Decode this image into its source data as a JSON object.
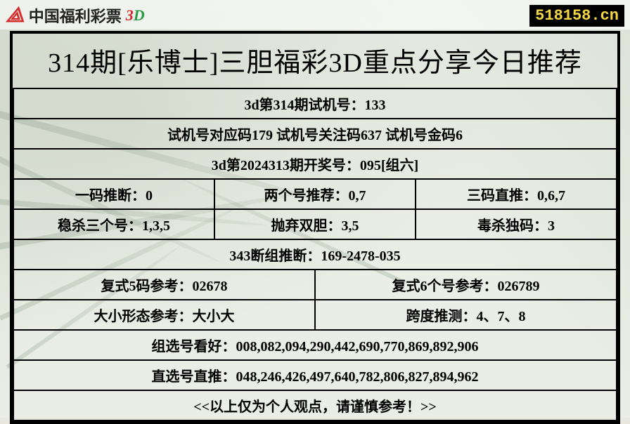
{
  "header": {
    "logo_text": "中国福利彩票",
    "logo_3d": "3D",
    "watermark": "518158.cn"
  },
  "title": "314期[乐博士]三胆福彩3D重点分享今日推荐",
  "rows": {
    "r1": "3d第314期试机号：133",
    "r2": "试机号对应码179 试机号关注码637 试机号金码6",
    "r3": "3d第2024313期开奖号：095[组六]",
    "r4c1": "一码推断：0",
    "r4c2": "两个号推荐：0,7",
    "r4c3": "三码直推：0,6,7",
    "r5c1": "稳杀三个号：1,3,5",
    "r5c2": "抛弃双胆：3,5",
    "r5c3": "毒杀独码：3",
    "r6": "343断组推断：169-2478-035",
    "r7c1": "复式5码参考：02678",
    "r7c2": "复式6个号参考：026789",
    "r8c1": "大小形态参考：大小大",
    "r8c2": "跨度推测：4、7、8",
    "r9": "组选号看好：008,082,094,290,442,690,770,869,892,906",
    "r10": "直选号直推：048,246,426,497,640,782,806,827,894,962",
    "r11": "<<以上仅为个人观点，请谨慎参考！>>"
  },
  "style": {
    "border_color": "#000000",
    "bg_color": "#eaeee6",
    "title_fontsize": 38,
    "cell_fontsize": 20,
    "watermark_bg": "#000000",
    "watermark_fg": "#f5d742",
    "logo_red": "#d42a2a",
    "logo_green": "#2a9a4a"
  }
}
